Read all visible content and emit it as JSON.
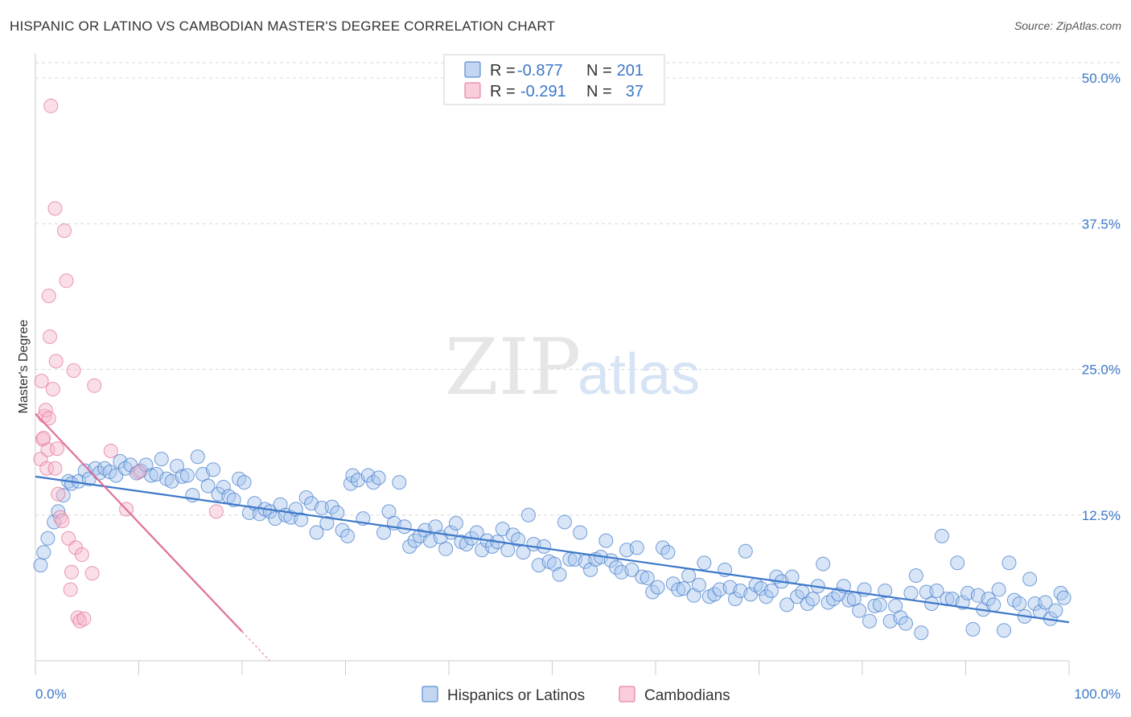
{
  "title": "HISPANIC OR LATINO VS CAMBODIAN MASTER'S DEGREE CORRELATION CHART",
  "source": "Source: ZipAtlas.com",
  "watermark": {
    "zip": "ZIP",
    "atlas": "atlas"
  },
  "colors": {
    "blue": "#3d78c9",
    "blue_fill": "#a9c6ee",
    "pink": "#e07098",
    "pink_fill": "#f6b8cb",
    "grid": "#d8d8d8"
  },
  "legend": {
    "rows": [
      {
        "r_label": "R =",
        "r_value": "-0.877",
        "n_label": "N =",
        "n_value": "201",
        "color": "#a9c6ee"
      },
      {
        "r_label": "R =",
        "r_value": "-0.291",
        "n_label": "N =",
        "n_value": "37",
        "color": "#f6b8cb"
      }
    ]
  },
  "chart_data": {
    "type": "scatter",
    "title": "HISPANIC OR LATINO VS CAMBODIAN MASTER'S DEGREE CORRELATION CHART",
    "xlabel": "",
    "ylabel": "Master's Degree",
    "xlim": [
      0,
      100
    ],
    "ylim": [
      0,
      52
    ],
    "x_tick_labels": [
      "0.0%",
      "100.0%"
    ],
    "y_ticks": [
      12.5,
      25.0,
      37.5,
      50.0
    ],
    "y_tick_labels": [
      "12.5%",
      "25.0%",
      "37.5%",
      "50.0%"
    ],
    "grid": true,
    "legend_position": "top-center",
    "series": [
      {
        "name": "Hispanics or Latinos",
        "color": "#3d78c9",
        "trend": {
          "x": [
            0,
            100
          ],
          "y": [
            15.8,
            3.3
          ]
        },
        "points": [
          [
            0.5,
            8.2
          ],
          [
            0.8,
            9.3
          ],
          [
            1.2,
            10.5
          ],
          [
            1.8,
            11.9
          ],
          [
            2.2,
            12.8
          ],
          [
            2.7,
            14.2
          ],
          [
            3.2,
            15.4
          ],
          [
            3.5,
            15.2
          ],
          [
            4.2,
            15.4
          ],
          [
            4.8,
            16.3
          ],
          [
            5.2,
            15.6
          ],
          [
            5.8,
            16.5
          ],
          [
            6.2,
            16.1
          ],
          [
            6.7,
            16.5
          ],
          [
            7.2,
            16.2
          ],
          [
            7.8,
            15.9
          ],
          [
            8.2,
            17.1
          ],
          [
            8.7,
            16.5
          ],
          [
            9.2,
            16.8
          ],
          [
            9.8,
            16.1
          ],
          [
            10.2,
            16.3
          ],
          [
            10.7,
            16.8
          ],
          [
            11.2,
            15.9
          ],
          [
            11.7,
            16.0
          ],
          [
            12.2,
            17.3
          ],
          [
            12.7,
            15.6
          ],
          [
            13.2,
            15.4
          ],
          [
            13.7,
            16.7
          ],
          [
            14.2,
            15.8
          ],
          [
            14.7,
            15.9
          ],
          [
            15.2,
            14.2
          ],
          [
            15.7,
            17.5
          ],
          [
            16.2,
            16.0
          ],
          [
            16.7,
            15.0
          ],
          [
            17.2,
            16.4
          ],
          [
            17.7,
            14.3
          ],
          [
            18.2,
            14.9
          ],
          [
            18.7,
            14.1
          ],
          [
            19.2,
            13.8
          ],
          [
            19.7,
            15.6
          ],
          [
            20.2,
            15.3
          ],
          [
            20.7,
            12.7
          ],
          [
            21.2,
            13.5
          ],
          [
            21.7,
            12.6
          ],
          [
            22.2,
            13.0
          ],
          [
            22.7,
            12.8
          ],
          [
            23.2,
            12.2
          ],
          [
            23.7,
            13.4
          ],
          [
            24.2,
            12.5
          ],
          [
            24.7,
            12.3
          ],
          [
            25.2,
            13.0
          ],
          [
            25.7,
            12.1
          ],
          [
            26.2,
            14.0
          ],
          [
            26.7,
            13.5
          ],
          [
            27.2,
            11.0
          ],
          [
            27.7,
            13.1
          ],
          [
            28.2,
            11.8
          ],
          [
            28.7,
            13.2
          ],
          [
            29.2,
            12.7
          ],
          [
            29.7,
            11.2
          ],
          [
            30.2,
            10.7
          ],
          [
            30.5,
            15.2
          ],
          [
            30.7,
            15.9
          ],
          [
            31.2,
            15.5
          ],
          [
            31.7,
            12.2
          ],
          [
            32.2,
            15.9
          ],
          [
            32.7,
            15.3
          ],
          [
            33.2,
            15.7
          ],
          [
            33.7,
            11.0
          ],
          [
            34.2,
            12.8
          ],
          [
            34.7,
            11.8
          ],
          [
            35.2,
            15.3
          ],
          [
            35.7,
            11.5
          ],
          [
            36.2,
            9.8
          ],
          [
            36.7,
            10.3
          ],
          [
            37.2,
            10.7
          ],
          [
            37.7,
            11.2
          ],
          [
            38.2,
            10.3
          ],
          [
            38.7,
            11.5
          ],
          [
            39.2,
            10.6
          ],
          [
            39.7,
            9.6
          ],
          [
            40.2,
            11.0
          ],
          [
            40.7,
            11.8
          ],
          [
            41.2,
            10.2
          ],
          [
            41.7,
            10.0
          ],
          [
            42.2,
            10.5
          ],
          [
            42.7,
            11.0
          ],
          [
            43.2,
            9.5
          ],
          [
            43.7,
            10.3
          ],
          [
            44.2,
            9.8
          ],
          [
            44.7,
            10.2
          ],
          [
            45.2,
            11.3
          ],
          [
            45.7,
            9.5
          ],
          [
            46.2,
            10.8
          ],
          [
            46.7,
            10.4
          ],
          [
            47.2,
            9.3
          ],
          [
            47.7,
            12.5
          ],
          [
            48.2,
            10.0
          ],
          [
            48.7,
            8.2
          ],
          [
            49.2,
            9.8
          ],
          [
            49.7,
            8.5
          ],
          [
            50.2,
            8.3
          ],
          [
            50.7,
            7.4
          ],
          [
            51.2,
            11.9
          ],
          [
            51.7,
            8.7
          ],
          [
            52.2,
            8.7
          ],
          [
            52.7,
            11.0
          ],
          [
            53.2,
            8.5
          ],
          [
            53.7,
            7.8
          ],
          [
            54.2,
            8.7
          ],
          [
            54.7,
            8.9
          ],
          [
            55.2,
            10.3
          ],
          [
            55.7,
            8.6
          ],
          [
            56.2,
            8.0
          ],
          [
            56.7,
            7.6
          ],
          [
            57.2,
            9.5
          ],
          [
            57.7,
            7.8
          ],
          [
            58.2,
            9.7
          ],
          [
            58.7,
            7.2
          ],
          [
            59.2,
            7.1
          ],
          [
            59.7,
            5.9
          ],
          [
            60.2,
            6.3
          ],
          [
            60.7,
            9.7
          ],
          [
            61.2,
            9.3
          ],
          [
            61.7,
            6.6
          ],
          [
            62.2,
            6.1
          ],
          [
            62.7,
            6.2
          ],
          [
            63.2,
            7.3
          ],
          [
            63.7,
            5.6
          ],
          [
            64.2,
            6.5
          ],
          [
            64.7,
            8.4
          ],
          [
            65.2,
            5.5
          ],
          [
            65.7,
            5.7
          ],
          [
            66.2,
            6.1
          ],
          [
            66.7,
            7.8
          ],
          [
            67.2,
            6.3
          ],
          [
            67.7,
            5.3
          ],
          [
            68.2,
            6.0
          ],
          [
            68.7,
            9.4
          ],
          [
            69.2,
            5.7
          ],
          [
            69.7,
            6.5
          ],
          [
            70.2,
            6.2
          ],
          [
            70.7,
            5.5
          ],
          [
            71.2,
            6.0
          ],
          [
            71.7,
            7.2
          ],
          [
            72.2,
            6.8
          ],
          [
            72.7,
            4.8
          ],
          [
            73.2,
            7.2
          ],
          [
            73.7,
            5.5
          ],
          [
            74.2,
            5.9
          ],
          [
            74.7,
            4.9
          ],
          [
            75.2,
            5.3
          ],
          [
            75.7,
            6.4
          ],
          [
            76.2,
            8.3
          ],
          [
            76.7,
            5.0
          ],
          [
            77.2,
            5.3
          ],
          [
            77.7,
            5.7
          ],
          [
            78.2,
            6.4
          ],
          [
            78.7,
            5.2
          ],
          [
            79.2,
            5.3
          ],
          [
            79.7,
            4.3
          ],
          [
            80.2,
            6.1
          ],
          [
            80.7,
            3.4
          ],
          [
            81.2,
            4.7
          ],
          [
            81.7,
            4.8
          ],
          [
            82.2,
            6.0
          ],
          [
            82.7,
            3.4
          ],
          [
            83.2,
            4.7
          ],
          [
            83.7,
            3.7
          ],
          [
            84.2,
            3.2
          ],
          [
            84.7,
            5.8
          ],
          [
            85.2,
            7.3
          ],
          [
            85.7,
            2.4
          ],
          [
            86.2,
            5.9
          ],
          [
            86.7,
            4.9
          ],
          [
            87.2,
            6.0
          ],
          [
            87.7,
            10.7
          ],
          [
            88.2,
            5.3
          ],
          [
            88.7,
            5.3
          ],
          [
            89.2,
            8.4
          ],
          [
            89.7,
            5.0
          ],
          [
            90.2,
            5.8
          ],
          [
            90.7,
            2.7
          ],
          [
            91.2,
            5.6
          ],
          [
            91.7,
            4.4
          ],
          [
            92.2,
            5.3
          ],
          [
            92.7,
            4.8
          ],
          [
            93.2,
            6.1
          ],
          [
            93.7,
            2.6
          ],
          [
            94.2,
            8.4
          ],
          [
            94.7,
            5.2
          ],
          [
            95.2,
            4.9
          ],
          [
            95.7,
            3.8
          ],
          [
            96.2,
            7.0
          ],
          [
            96.7,
            4.9
          ],
          [
            97.2,
            4.2
          ],
          [
            97.7,
            5.0
          ],
          [
            98.2,
            3.6
          ],
          [
            98.7,
            4.3
          ],
          [
            99.2,
            5.8
          ],
          [
            99.5,
            5.4
          ]
        ]
      },
      {
        "name": "Cambodians",
        "color": "#e07098",
        "trend": {
          "x": [
            0,
            20
          ],
          "y": [
            21.2,
            2.5
          ]
        },
        "points": [
          [
            0.5,
            17.3
          ],
          [
            0.6,
            24.0
          ],
          [
            0.7,
            19.0
          ],
          [
            0.8,
            19.1
          ],
          [
            0.9,
            21.0
          ],
          [
            1.0,
            21.5
          ],
          [
            1.1,
            16.5
          ],
          [
            1.2,
            18.1
          ],
          [
            1.3,
            31.3
          ],
          [
            1.4,
            27.8
          ],
          [
            1.5,
            47.6
          ],
          [
            1.7,
            23.3
          ],
          [
            1.9,
            38.8
          ],
          [
            2.0,
            25.7
          ],
          [
            2.1,
            18.2
          ],
          [
            2.2,
            14.3
          ],
          [
            2.4,
            12.3
          ],
          [
            2.6,
            12.0
          ],
          [
            2.8,
            36.9
          ],
          [
            3.0,
            32.6
          ],
          [
            3.2,
            10.5
          ],
          [
            3.4,
            6.1
          ],
          [
            3.5,
            7.6
          ],
          [
            3.7,
            24.9
          ],
          [
            3.9,
            9.7
          ],
          [
            4.1,
            3.7
          ],
          [
            4.3,
            3.4
          ],
          [
            4.5,
            9.1
          ],
          [
            4.7,
            3.6
          ],
          [
            5.5,
            7.5
          ],
          [
            5.7,
            23.6
          ],
          [
            7.3,
            18.0
          ],
          [
            8.8,
            13.0
          ],
          [
            10.0,
            16.2
          ],
          [
            17.5,
            12.8
          ],
          [
            1.3,
            20.8
          ],
          [
            1.9,
            16.5
          ]
        ]
      }
    ]
  }
}
